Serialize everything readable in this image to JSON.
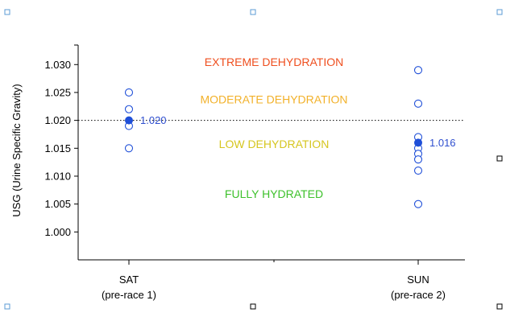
{
  "chart_data": {
    "type": "scatter",
    "ylabel": "USG (Urine Specific Gravity)",
    "ylim": [
      0.995,
      1.0335
    ],
    "yticks": [
      "1.000",
      "1.005",
      "1.010",
      "1.015",
      "1.020",
      "1.025",
      "1.030"
    ],
    "categories": [
      {
        "name": "SAT",
        "sub": "(pre-race 1)"
      },
      {
        "name": "SUN",
        "sub": "(pre-race 2)"
      }
    ],
    "series": [
      {
        "name": "SAT",
        "values": [
          1.025,
          1.022,
          1.019,
          1.015
        ]
      },
      {
        "name": "SUN",
        "values": [
          1.029,
          1.023,
          1.017,
          1.015,
          1.014,
          1.013,
          1.011,
          1.005
        ]
      }
    ],
    "means": [
      {
        "category": "SAT",
        "value": 1.02,
        "label": "1.020"
      },
      {
        "category": "SUN",
        "value": 1.016,
        "label": "1.016"
      }
    ],
    "reference_line": {
      "value": 1.02,
      "style": "dotted"
    },
    "zones": [
      {
        "label": "EXTREME DEHYDRATION",
        "y": 1.0305,
        "color": "#ef4f1f"
      },
      {
        "label": "MODERATE DEHYDRATION",
        "y": 1.0238,
        "color": "#f2b12a"
      },
      {
        "label": "LOW DEHYDRATION",
        "y": 1.0158,
        "color": "#d6c61f"
      },
      {
        "label": "FULLY HYDRATED",
        "y": 1.0068,
        "color": "#3ec12c"
      }
    ],
    "colors": {
      "marker": "#1f4fd8",
      "mean_label": "#2f4fcf",
      "axis": "#000000"
    }
  }
}
